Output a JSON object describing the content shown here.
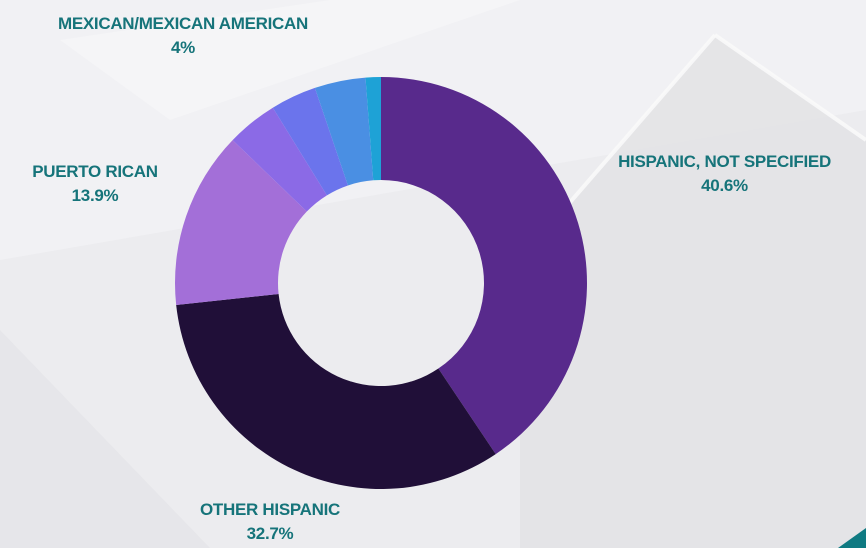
{
  "chart_data": {
    "type": "pie",
    "variant": "donut",
    "title": "",
    "slices": [
      {
        "label": "HISPANIC, NOT SPECIFIED",
        "value": 40.6,
        "value_text": "40.6%",
        "color": "#582a8c"
      },
      {
        "label": "OTHER HISPANIC",
        "value": 32.7,
        "value_text": "32.7%",
        "color": "#200f38"
      },
      {
        "label": "PUERTO RICAN",
        "value": 13.9,
        "value_text": "13.9%",
        "color": "#a36fd8"
      },
      {
        "label": "",
        "value": 4.0,
        "value_text": "",
        "color": "#8b6ae6"
      },
      {
        "label": "",
        "value": 3.6,
        "value_text": "",
        "color": "#6b74ec"
      },
      {
        "label": "MEXICAN/MEXICAN AMERICAN",
        "value": 4.0,
        "value_text": "4%",
        "color": "#4a8fe3"
      },
      {
        "label": "",
        "value": 1.2,
        "value_text": "",
        "color": "#1ea2d6"
      }
    ],
    "label_color": "#16747a",
    "legend": "none"
  }
}
